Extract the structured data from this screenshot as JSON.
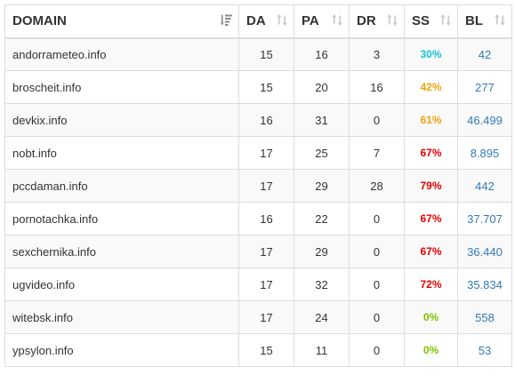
{
  "table": {
    "headers": {
      "domain": "DOMAIN",
      "da": "DA",
      "pa": "PA",
      "dr": "DR",
      "ss": "SS",
      "bl": "BL"
    },
    "sort_icons": {
      "active": "sort-amount-desc-icon",
      "inactive": "sort-arrows-icon"
    },
    "ss_colors": {
      "cyan": "#17c3d3",
      "orange": "#f0a30a",
      "red": "#e60000",
      "green": "#7cc400"
    },
    "rows": [
      {
        "domain": "andorrameteo.info",
        "da": "15",
        "pa": "16",
        "dr": "3",
        "ss": "30%",
        "ss_color": "#17c3d3",
        "bl": "42"
      },
      {
        "domain": "broscheit.info",
        "da": "15",
        "pa": "20",
        "dr": "16",
        "ss": "42%",
        "ss_color": "#f0a30a",
        "bl": "277"
      },
      {
        "domain": "devkix.info",
        "da": "16",
        "pa": "31",
        "dr": "0",
        "ss": "61%",
        "ss_color": "#f0a30a",
        "bl": "46.499"
      },
      {
        "domain": "nobt.info",
        "da": "17",
        "pa": "25",
        "dr": "7",
        "ss": "67%",
        "ss_color": "#e60000",
        "bl": "8.895"
      },
      {
        "domain": "pccdaman.info",
        "da": "17",
        "pa": "29",
        "dr": "28",
        "ss": "79%",
        "ss_color": "#e60000",
        "bl": "442"
      },
      {
        "domain": "pornotachka.info",
        "da": "16",
        "pa": "22",
        "dr": "0",
        "ss": "67%",
        "ss_color": "#e60000",
        "bl": "37.707"
      },
      {
        "domain": "sexchernika.info",
        "da": "17",
        "pa": "29",
        "dr": "0",
        "ss": "67%",
        "ss_color": "#e60000",
        "bl": "36.440"
      },
      {
        "domain": "ugvideo.info",
        "da": "17",
        "pa": "32",
        "dr": "0",
        "ss": "72%",
        "ss_color": "#e60000",
        "bl": "35.834"
      },
      {
        "domain": "witebsk.info",
        "da": "17",
        "pa": "24",
        "dr": "0",
        "ss": "0%",
        "ss_color": "#7cc400",
        "bl": "558"
      },
      {
        "domain": "ypsylon.info",
        "da": "15",
        "pa": "11",
        "dr": "0",
        "ss": "0%",
        "ss_color": "#7cc400",
        "bl": "53"
      }
    ]
  }
}
